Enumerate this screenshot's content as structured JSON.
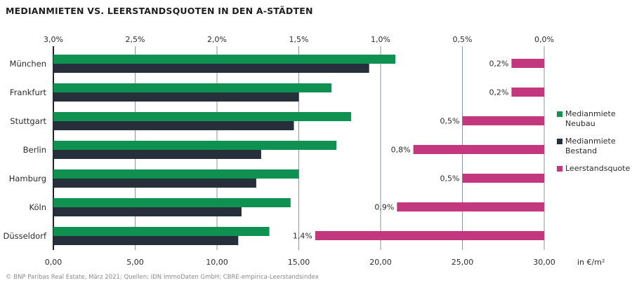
{
  "title": "MEDIANMIETEN VS. LEERSTANDSQUOTEN IN DEN A-STÄDTEN",
  "source": "© BNP Paribas Real Estate, März 2021; Quellen: IDN ImmoDaten GmbH; CBRE-empirica-Leerstandsindex",
  "colors": {
    "neubau": "#0f9151",
    "bestand": "#27303a",
    "leerstand": "#c2377d",
    "grid": "#8b93a4",
    "axis": "#222222"
  },
  "legend": [
    {
      "label": "Medianmiete Neubau",
      "color_key": "neubau"
    },
    {
      "label": "Medianmiete Bestand",
      "color_key": "bestand"
    },
    {
      "label": "Leerstandsquote",
      "color_key": "leerstand"
    }
  ],
  "chart_data": {
    "type": "bar",
    "orientation": "horizontal",
    "categories": [
      "München",
      "Frankfurt",
      "Stuttgart",
      "Berlin",
      "Hamburg",
      "Köln",
      "Düsseldorf"
    ],
    "series": [
      {
        "name": "Medianmiete Neubau",
        "axis": "bottom",
        "values": [
          20.9,
          17.0,
          18.2,
          17.3,
          15.0,
          14.5,
          13.2
        ]
      },
      {
        "name": "Medianmiete Bestand",
        "axis": "bottom",
        "values": [
          19.3,
          15.0,
          14.7,
          12.7,
          12.4,
          11.5,
          11.3
        ]
      },
      {
        "name": "Leerstandsquote",
        "axis": "top",
        "values": [
          0.2,
          0.2,
          0.5,
          0.8,
          0.5,
          0.9,
          1.4
        ],
        "labels": [
          "0,2%",
          "0,2%",
          "0,5%",
          "0,8%",
          "0,5%",
          "0,9%",
          "1,4%"
        ]
      }
    ],
    "x_bottom": {
      "range": [
        0,
        30
      ],
      "ticks": [
        0,
        5,
        10,
        15,
        20,
        25,
        30
      ],
      "tick_labels": [
        "0,00",
        "5,00",
        "10,00",
        "15,00",
        "20,00",
        "25,00",
        "30,00"
      ],
      "unit_label": "in €/m²"
    },
    "x_top": {
      "range": [
        3.0,
        0.0
      ],
      "ticks": [
        3.0,
        2.5,
        2.0,
        1.5,
        1.0,
        0.5,
        0.0
      ],
      "tick_labels": [
        "3,0%",
        "2,5%",
        "2,0%",
        "1,5%",
        "1,0%",
        "0,5%",
        "0,0%"
      ]
    },
    "grid": true,
    "legend_position": "right"
  }
}
